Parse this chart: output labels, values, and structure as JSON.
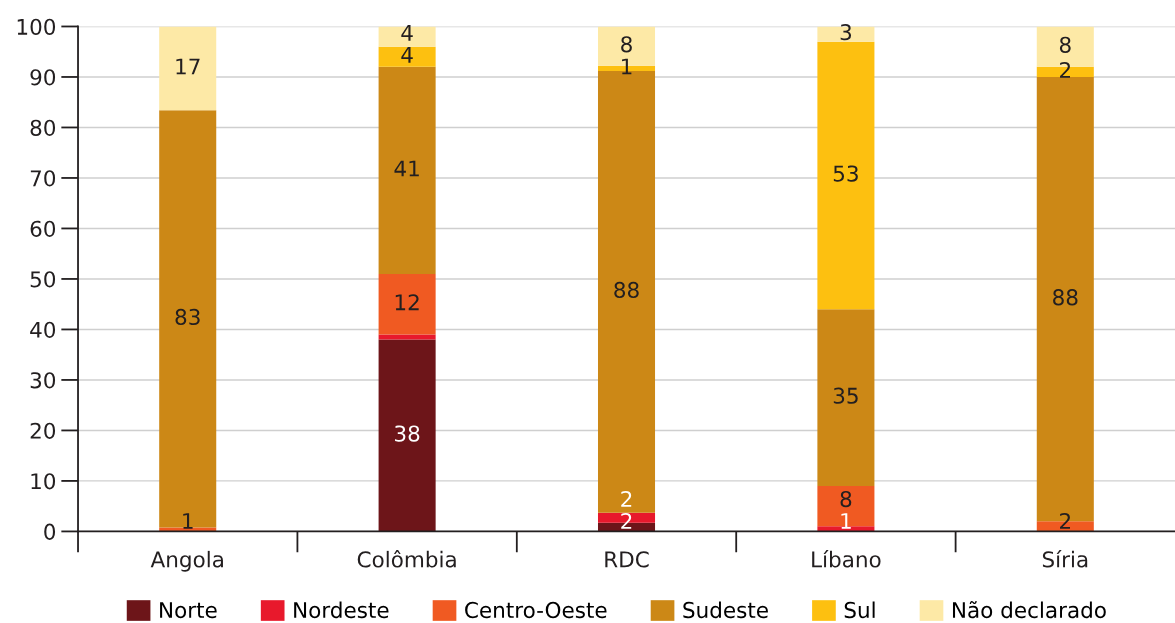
{
  "chart_data": {
    "type": "bar",
    "stacked": true,
    "categories": [
      "Angola",
      "Colômbia",
      "RDC",
      "Líbano",
      "Síria"
    ],
    "series": [
      {
        "name": "Norte",
        "color": "#6d1519",
        "values": [
          null,
          38,
          1.7,
          null,
          null
        ],
        "value_labels": [
          null,
          "38",
          "2",
          null,
          null
        ]
      },
      {
        "name": "Nordeste",
        "color": "#e8192c",
        "values": [
          null,
          1,
          2.0,
          1,
          null
        ],
        "value_labels": [
          null,
          null,
          "2",
          "1",
          null
        ]
      },
      {
        "name": "Centro-Oeste",
        "color": "#f05a22",
        "values": [
          0.8,
          12,
          null,
          8,
          2
        ],
        "value_labels": [
          "1",
          "12",
          null,
          "8",
          "2"
        ]
      },
      {
        "name": "Sudeste",
        "color": "#cc8816",
        "values": [
          82.6,
          41,
          87.5,
          35,
          88
        ],
        "value_labels": [
          "83",
          "41",
          "88",
          "35",
          "88"
        ]
      },
      {
        "name": "Sul",
        "color": "#fdc010",
        "values": [
          null,
          4,
          1.0,
          53,
          2
        ],
        "value_labels": [
          null,
          "4",
          "1",
          "53",
          "2"
        ]
      },
      {
        "name": "Não declarado",
        "color": "#fde9a6",
        "values": [
          16.6,
          4,
          7.8,
          3,
          8
        ],
        "value_labels": [
          "17",
          "4",
          "8",
          "3",
          "8"
        ]
      }
    ],
    "ylim": [
      0,
      100
    ],
    "yticks": [
      0,
      10,
      20,
      30,
      40,
      50,
      60,
      70,
      80,
      90,
      100
    ],
    "grid": "y",
    "legend": "bottom"
  }
}
